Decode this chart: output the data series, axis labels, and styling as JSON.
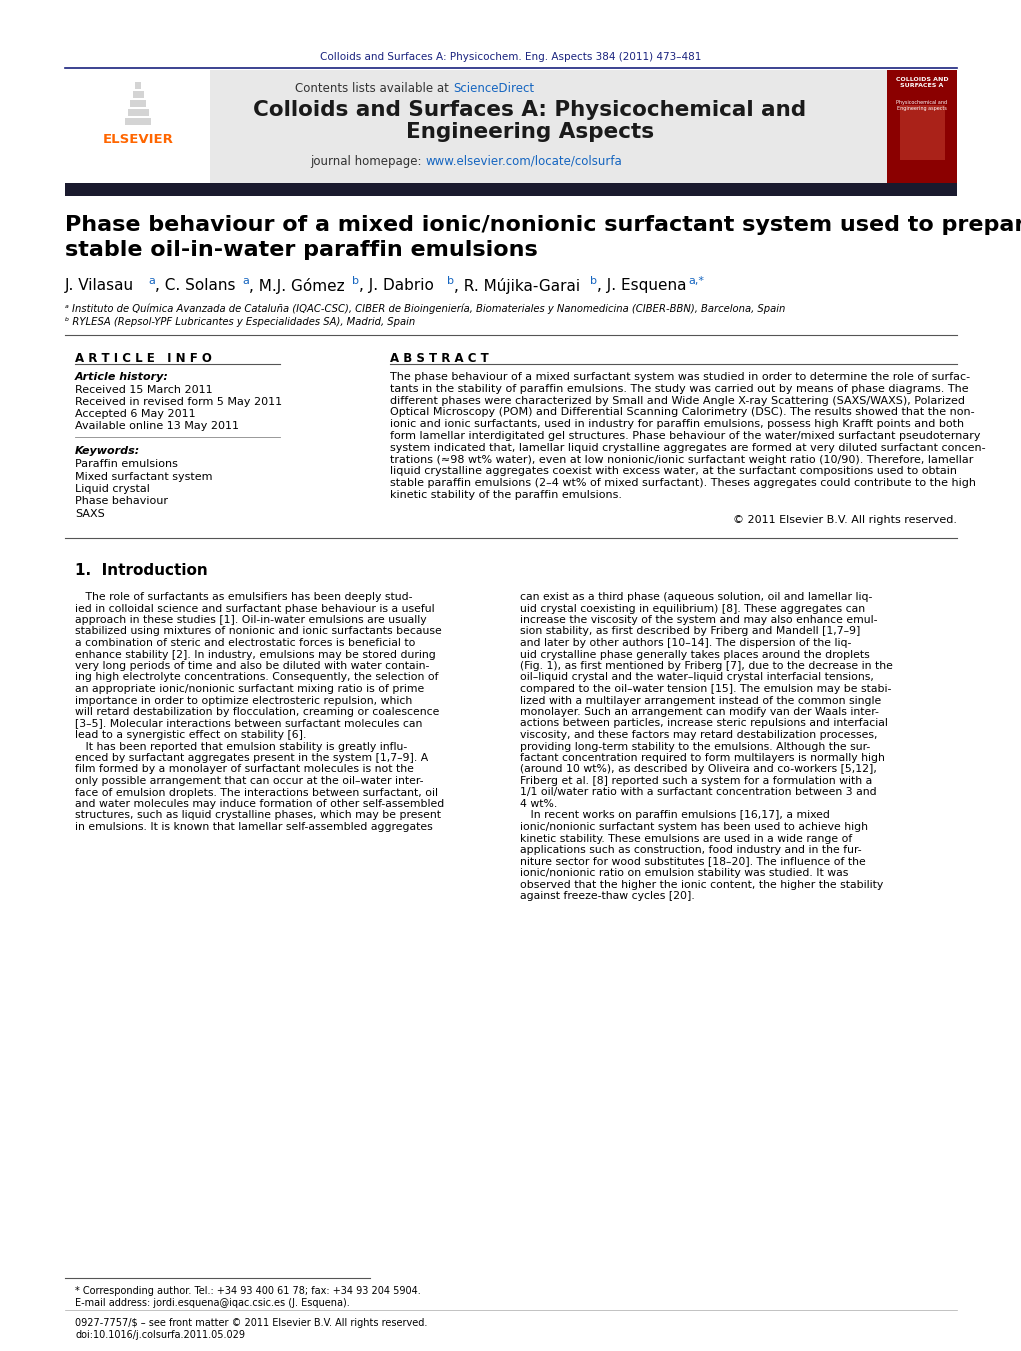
{
  "journal_ref": "Colloids and Surfaces A: Physicochem. Eng. Aspects 384 (2011) 473–481",
  "journal_ref_color": "#1a237e",
  "header_bg": "#e8e8e8",
  "header_sciencedirect_color": "#1565c0",
  "header_url_color": "#1565c0",
  "elsevier_color": "#ff6600",
  "dark_bar_color": "#1a1a2e",
  "affil_a": "ᵃ Instituto de Química Avanzada de Cataluña (IQAC-CSC), CIBER de Bioingeniería, Biomateriales y Nanomedicina (CIBER-BBN), Barcelona, Spain",
  "affil_b": "ᵇ RYLESA (Repsol-YPF Lubricantes y Especialidades SA), Madrid, Spain",
  "article_info_header": "A R T I C L E   I N F O",
  "abstract_header": "A B S T R A C T",
  "article_history_label": "Article history:",
  "received": "Received 15 March 2011",
  "received_revised": "Received in revised form 5 May 2011",
  "accepted": "Accepted 6 May 2011",
  "available": "Available online 13 May 2011",
  "keywords_label": "Keywords:",
  "keywords": [
    "Paraffin emulsions",
    "Mixed surfactant system",
    "Liquid crystal",
    "Phase behaviour",
    "SAXS"
  ],
  "copyright": "© 2011 Elsevier B.V. All rights reserved.",
  "intro_header": "1.  Introduction",
  "footnote1": "* Corresponding author. Tel.: +34 93 400 61 78; fax: +34 93 204 5904.",
  "footnote2": "E-mail address: jordi.esquena@iqac.csic.es (J. Esquena).",
  "footnote3": "0927-7757/$ – see front matter © 2011 Elsevier B.V. All rights reserved.",
  "footnote4": "doi:10.1016/j.colsurfa.2011.05.029",
  "bg_color": "#ffffff",
  "text_color": "#000000",
  "abstract_lines": [
    "The phase behaviour of a mixed surfactant system was studied in order to determine the role of surfac-",
    "tants in the stability of paraffin emulsions. The study was carried out by means of phase diagrams. The",
    "different phases were characterized by Small and Wide Angle X-ray Scattering (SAXS/WAXS), Polarized",
    "Optical Microscopy (POM) and Differential Scanning Calorimetry (DSC). The results showed that the non-",
    "ionic and ionic surfactants, used in industry for paraffin emulsions, possess high Krafft points and both",
    "form lamellar interdigitated gel structures. Phase behaviour of the water/mixed surfactant pseudoternary",
    "system indicated that, lamellar liquid crystalline aggregates are formed at very diluted surfactant concen-",
    "trations (≈98 wt% water), even at low nonionic/ionic surfactant weight ratio (10/90). Therefore, lamellar",
    "liquid crystalline aggregates coexist with excess water, at the surfactant compositions used to obtain",
    "stable paraffin emulsions (2–4 wt% of mixed surfactant). Theses aggregates could contribute to the high",
    "kinetic stability of the paraffin emulsions."
  ],
  "col1_lines": [
    "   The role of surfactants as emulsifiers has been deeply stud-",
    "ied in colloidal science and surfactant phase behaviour is a useful",
    "approach in these studies [1]. Oil-in-water emulsions are usually",
    "stabilized using mixtures of nonionic and ionic surfactants because",
    "a combination of steric and electrostatic forces is beneficial to",
    "enhance stability [2]. In industry, emulsions may be stored during",
    "very long periods of time and also be diluted with water contain-",
    "ing high electrolyte concentrations. Consequently, the selection of",
    "an appropriate ionic/nonionic surfactant mixing ratio is of prime",
    "importance in order to optimize electrosteric repulsion, which",
    "will retard destabilization by flocculation, creaming or coalescence",
    "[3–5]. Molecular interactions between surfactant molecules can",
    "lead to a synergistic effect on stability [6].",
    "   It has been reported that emulsion stability is greatly influ-",
    "enced by surfactant aggregates present in the system [1,7–9]. A",
    "film formed by a monolayer of surfactant molecules is not the",
    "only possible arrangement that can occur at the oil–water inter-",
    "face of emulsion droplets. The interactions between surfactant, oil",
    "and water molecules may induce formation of other self-assembled",
    "structures, such as liquid crystalline phases, which may be present",
    "in emulsions. It is known that lamellar self-assembled aggregates"
  ],
  "col2_lines": [
    "can exist as a third phase (aqueous solution, oil and lamellar liq-",
    "uid crystal coexisting in equilibrium) [8]. These aggregates can",
    "increase the viscosity of the system and may also enhance emul-",
    "sion stability, as first described by Friberg and Mandell [1,7–9]",
    "and later by other authors [10–14]. The dispersion of the liq-",
    "uid crystalline phase generally takes places around the droplets",
    "(Fig. 1), as first mentioned by Friberg [7], due to the decrease in the",
    "oil–liquid crystal and the water–liquid crystal interfacial tensions,",
    "compared to the oil–water tension [15]. The emulsion may be stabi-",
    "lized with a multilayer arrangement instead of the common single",
    "monolayer. Such an arrangement can modify van der Waals inter-",
    "actions between particles, increase steric repulsions and interfacial",
    "viscosity, and these factors may retard destabilization processes,",
    "providing long-term stability to the emulsions. Although the sur-",
    "factant concentration required to form multilayers is normally high",
    "(around 10 wt%), as described by Oliveira and co-workers [5,12],",
    "Friberg et al. [8] reported such a system for a formulation with a",
    "1/1 oil/water ratio with a surfactant concentration between 3 and",
    "4 wt%.",
    "   In recent works on paraffin emulsions [16,17], a mixed",
    "ionic/nonionic surfactant system has been used to achieve high",
    "kinetic stability. These emulsions are used in a wide range of",
    "applications such as construction, food industry and in the fur-",
    "niture sector for wood substitutes [18–20]. The influence of the",
    "ionic/nonionic ratio on emulsion stability was studied. It was",
    "observed that the higher the ionic content, the higher the stability",
    "against freeze-thaw cycles [20]."
  ]
}
